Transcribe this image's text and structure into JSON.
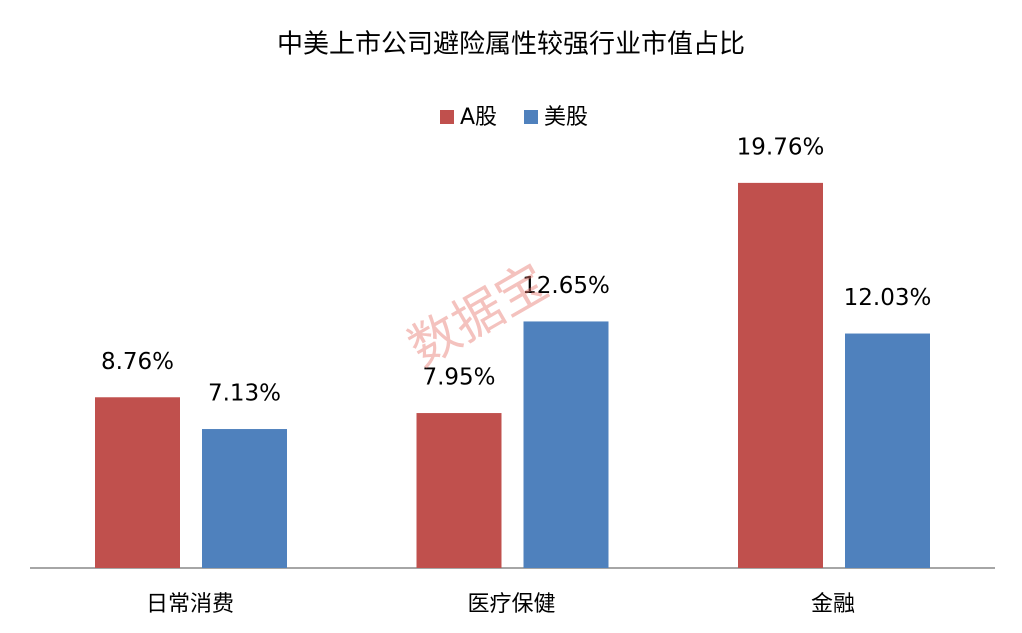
{
  "chart_data": {
    "type": "bar",
    "title": "中美上市公司避险属性较强行业市值占比",
    "categories": [
      "日常消费",
      "医疗保健",
      "金融"
    ],
    "series": [
      {
        "name": "A股",
        "color": "#c0504d",
        "values": [
          8.76,
          7.95,
          19.76
        ],
        "value_labels": [
          "8.76%",
          "7.95%",
          "19.76%"
        ]
      },
      {
        "name": "美股",
        "color": "#4f81bd",
        "values": [
          7.13,
          12.65,
          12.03
        ],
        "value_labels": [
          "7.13%",
          "12.65%",
          "12.03%"
        ]
      }
    ],
    "legend": "top",
    "watermark": "数据宝"
  }
}
